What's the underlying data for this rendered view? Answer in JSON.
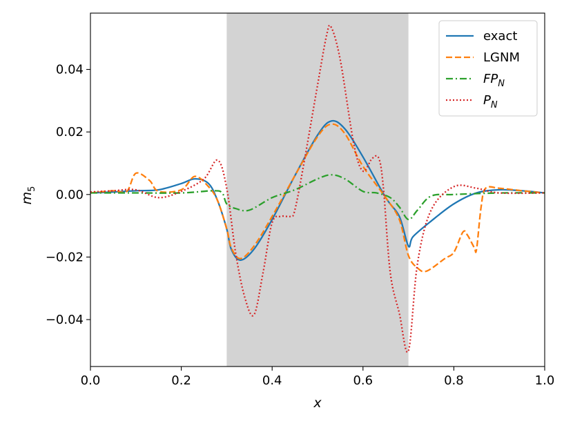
{
  "chart_data": {
    "type": "line",
    "xlabel": "x",
    "ylabel": "m",
    "ylabel_sub": "5",
    "xlim": [
      0.0,
      1.0
    ],
    "ylim": [
      -0.055,
      0.058
    ],
    "xticks": [
      0.0,
      0.2,
      0.4,
      0.6,
      0.8,
      1.0
    ],
    "xtick_labels": [
      "0.0",
      "0.2",
      "0.4",
      "0.6",
      "0.8",
      "1.0"
    ],
    "yticks": [
      -0.04,
      -0.02,
      0.0,
      0.02,
      0.04
    ],
    "ytick_labels": [
      "−0.04",
      "−0.02",
      "0.00",
      "0.02",
      "0.04"
    ],
    "shaded_region": {
      "x": [
        0.3,
        0.7
      ],
      "color": "#d3d3d3"
    },
    "grid": false,
    "legend_position": "top-right",
    "series": [
      {
        "name": "exact",
        "color": "#1f77b4",
        "dash": "",
        "x": [
          0,
          0.05,
          0.1,
          0.15,
          0.2,
          0.23,
          0.26,
          0.28,
          0.3,
          0.31,
          0.33,
          0.36,
          0.4,
          0.45,
          0.5,
          0.53,
          0.56,
          0.6,
          0.65,
          0.68,
          0.7,
          0.71,
          0.75,
          0.8,
          0.85,
          0.9,
          0.95,
          1.0
        ],
        "y": [
          0.0005,
          0.0008,
          0.0012,
          0.0015,
          0.0035,
          0.005,
          0.0035,
          -0.002,
          -0.011,
          -0.0175,
          -0.021,
          -0.0175,
          -0.008,
          0.006,
          0.019,
          0.0235,
          0.021,
          0.012,
          -0.001,
          -0.007,
          -0.0165,
          -0.0135,
          -0.0085,
          -0.003,
          0.0005,
          0.0015,
          0.0012,
          0.0005
        ]
      },
      {
        "name": "LGNM",
        "color": "#ff7f0e",
        "dash": "9,4",
        "x": [
          0,
          0.05,
          0.08,
          0.1,
          0.13,
          0.15,
          0.2,
          0.23,
          0.26,
          0.28,
          0.3,
          0.31,
          0.33,
          0.36,
          0.4,
          0.45,
          0.5,
          0.53,
          0.56,
          0.6,
          0.65,
          0.68,
          0.7,
          0.72,
          0.74,
          0.78,
          0.8,
          0.82,
          0.83,
          0.845,
          0.85,
          0.86,
          0.87,
          0.9,
          0.95,
          1.0
        ],
        "y": [
          0.0005,
          0.0012,
          0.001,
          0.0068,
          0.0045,
          0.001,
          0.0015,
          0.0058,
          0.0025,
          -0.002,
          -0.011,
          -0.017,
          -0.0205,
          -0.0165,
          -0.007,
          0.006,
          0.0185,
          0.0225,
          0.0195,
          0.009,
          -0.001,
          -0.008,
          -0.0195,
          -0.0235,
          -0.0245,
          -0.0205,
          -0.0185,
          -0.012,
          -0.013,
          -0.017,
          -0.0175,
          -0.004,
          0.002,
          0.002,
          0.0012,
          0.0005
        ]
      },
      {
        "name": "FP_N",
        "label_main": "FP",
        "label_sub": "N",
        "color": "#2ca02c",
        "dash": "10,4,2,4",
        "x": [
          0,
          0.1,
          0.2,
          0.27,
          0.29,
          0.3,
          0.32,
          0.35,
          0.4,
          0.45,
          0.5,
          0.53,
          0.56,
          0.6,
          0.63,
          0.66,
          0.68,
          0.7,
          0.72,
          0.75,
          0.8,
          0.9,
          1.0
        ],
        "y": [
          0.0005,
          0.0005,
          0.0005,
          0.0012,
          0.0005,
          -0.003,
          -0.0045,
          -0.005,
          -0.001,
          0.0015,
          0.005,
          0.0063,
          0.005,
          0.001,
          0.0005,
          -0.001,
          -0.004,
          -0.008,
          -0.005,
          -0.0005,
          0.0,
          0.0005,
          0.0005
        ]
      },
      {
        "name": "P_N",
        "label_main": "P",
        "label_sub": "N",
        "color": "#d62728",
        "dash": "2,3",
        "x": [
          0,
          0.05,
          0.1,
          0.15,
          0.2,
          0.25,
          0.28,
          0.3,
          0.32,
          0.34,
          0.36,
          0.38,
          0.4,
          0.42,
          0.44,
          0.45,
          0.47,
          0.5,
          0.52,
          0.53,
          0.55,
          0.58,
          0.6,
          0.62,
          0.635,
          0.645,
          0.66,
          0.68,
          0.7,
          0.72,
          0.75,
          0.8,
          0.85,
          0.9,
          1.0
        ],
        "y": [
          0.0008,
          0.0012,
          0.0015,
          -0.001,
          0.001,
          0.005,
          0.011,
          0.002,
          -0.019,
          -0.033,
          -0.0385,
          -0.025,
          -0.009,
          -0.007,
          -0.007,
          -0.005,
          0.01,
          0.035,
          0.051,
          0.0535,
          0.043,
          0.016,
          0.0075,
          0.0115,
          0.0115,
          0.002,
          -0.025,
          -0.038,
          -0.05,
          -0.022,
          -0.005,
          0.0025,
          0.002,
          0.0005,
          0.0005
        ]
      }
    ]
  }
}
